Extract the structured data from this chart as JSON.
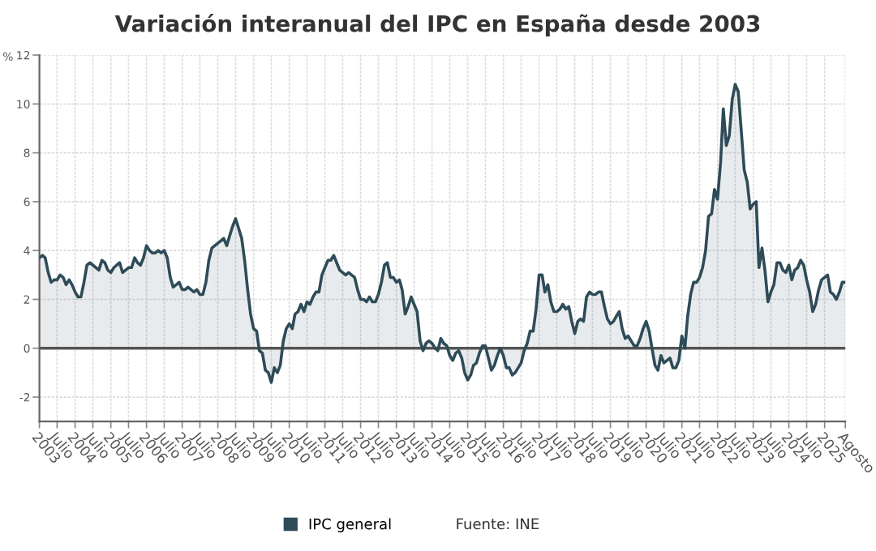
{
  "chart_data": {
    "type": "area",
    "title": "Variación interanual del IPC en España desde 2003",
    "ylabel": "%",
    "x": [
      "2003-01",
      "2003-02",
      "2003-03",
      "2003-04",
      "2003-05",
      "2003-06",
      "2003-07",
      "2003-08",
      "2003-09",
      "2003-10",
      "2003-11",
      "2003-12",
      "2004-01",
      "2004-02",
      "2004-03",
      "2004-04",
      "2004-05",
      "2004-06",
      "2004-07",
      "2004-08",
      "2004-09",
      "2004-10",
      "2004-11",
      "2004-12",
      "2005-01",
      "2005-02",
      "2005-03",
      "2005-04",
      "2005-05",
      "2005-06",
      "2005-07",
      "2005-08",
      "2005-09",
      "2005-10",
      "2005-11",
      "2005-12",
      "2006-01",
      "2006-02",
      "2006-03",
      "2006-04",
      "2006-05",
      "2006-06",
      "2006-07",
      "2006-08",
      "2006-09",
      "2006-10",
      "2006-11",
      "2006-12",
      "2007-01",
      "2007-02",
      "2007-03",
      "2007-04",
      "2007-05",
      "2007-06",
      "2007-07",
      "2007-08",
      "2007-09",
      "2007-10",
      "2007-11",
      "2007-12",
      "2008-01",
      "2008-02",
      "2008-03",
      "2008-04",
      "2008-05",
      "2008-06",
      "2008-07",
      "2008-08",
      "2008-09",
      "2008-10",
      "2008-11",
      "2008-12",
      "2009-01",
      "2009-02",
      "2009-03",
      "2009-04",
      "2009-05",
      "2009-06",
      "2009-07",
      "2009-08",
      "2009-09",
      "2009-10",
      "2009-11",
      "2009-12",
      "2010-01",
      "2010-02",
      "2010-03",
      "2010-04",
      "2010-05",
      "2010-06",
      "2010-07",
      "2010-08",
      "2010-09",
      "2010-10",
      "2010-11",
      "2010-12",
      "2011-01",
      "2011-02",
      "2011-03",
      "2011-04",
      "2011-05",
      "2011-06",
      "2011-07",
      "2011-08",
      "2011-09",
      "2011-10",
      "2011-11",
      "2011-12",
      "2012-01",
      "2012-02",
      "2012-03",
      "2012-04",
      "2012-05",
      "2012-06",
      "2012-07",
      "2012-08",
      "2012-09",
      "2012-10",
      "2012-11",
      "2012-12",
      "2013-01",
      "2013-02",
      "2013-03",
      "2013-04",
      "2013-05",
      "2013-06",
      "2013-07",
      "2013-08",
      "2013-09",
      "2013-10",
      "2013-11",
      "2013-12",
      "2014-01",
      "2014-02",
      "2014-03",
      "2014-04",
      "2014-05",
      "2014-06",
      "2014-07",
      "2014-08",
      "2014-09",
      "2014-10",
      "2014-11",
      "2014-12",
      "2015-01",
      "2015-02",
      "2015-03",
      "2015-04",
      "2015-05",
      "2015-06",
      "2015-07",
      "2015-08",
      "2015-09",
      "2015-10",
      "2015-11",
      "2015-12",
      "2016-01",
      "2016-02",
      "2016-03",
      "2016-04",
      "2016-05",
      "2016-06",
      "2016-07",
      "2016-08",
      "2016-09",
      "2016-10",
      "2016-11",
      "2016-12",
      "2017-01",
      "2017-02",
      "2017-03",
      "2017-04",
      "2017-05",
      "2017-06",
      "2017-07",
      "2017-08",
      "2017-09",
      "2017-10",
      "2017-11",
      "2017-12",
      "2018-01",
      "2018-02",
      "2018-03",
      "2018-04",
      "2018-05",
      "2018-06",
      "2018-07",
      "2018-08",
      "2018-09",
      "2018-10",
      "2018-11",
      "2018-12",
      "2019-01",
      "2019-02",
      "2019-03",
      "2019-04",
      "2019-05",
      "2019-06",
      "2019-07",
      "2019-08",
      "2019-09",
      "2019-10",
      "2019-11",
      "2019-12",
      "2020-01",
      "2020-02",
      "2020-03",
      "2020-04",
      "2020-05",
      "2020-06",
      "2020-07",
      "2020-08",
      "2020-09",
      "2020-10",
      "2020-11",
      "2020-12",
      "2021-01",
      "2021-02",
      "2021-03",
      "2021-04",
      "2021-05",
      "2021-06",
      "2021-07",
      "2021-08",
      "2021-09",
      "2021-10",
      "2021-11",
      "2021-12",
      "2022-01",
      "2022-02",
      "2022-03",
      "2022-04",
      "2022-05",
      "2022-06",
      "2022-07",
      "2022-08",
      "2022-09",
      "2022-10",
      "2022-11",
      "2022-12",
      "2023-01",
      "2023-02",
      "2023-03",
      "2023-04",
      "2023-05",
      "2023-06",
      "2023-07",
      "2023-08",
      "2023-09",
      "2023-10",
      "2023-11",
      "2023-12",
      "2024-01",
      "2024-02",
      "2024-03",
      "2024-04",
      "2024-05",
      "2024-06",
      "2024-07",
      "2024-08",
      "2024-09",
      "2024-10",
      "2024-11",
      "2024-12",
      "2025-01",
      "2025-02",
      "2025-03",
      "2025-04",
      "2025-05",
      "2025-06",
      "2025-07",
      "2025-08"
    ],
    "series": [
      {
        "name": "IPC general",
        "color": "#2e4b58",
        "values": [
          3.7,
          3.8,
          3.7,
          3.1,
          2.7,
          2.8,
          2.8,
          3.0,
          2.9,
          2.6,
          2.8,
          2.6,
          2.3,
          2.1,
          2.1,
          2.7,
          3.4,
          3.5,
          3.4,
          3.3,
          3.2,
          3.6,
          3.5,
          3.2,
          3.1,
          3.3,
          3.4,
          3.5,
          3.1,
          3.2,
          3.3,
          3.3,
          3.7,
          3.5,
          3.4,
          3.7,
          4.2,
          4.0,
          3.9,
          3.9,
          4.0,
          3.9,
          4.0,
          3.7,
          2.9,
          2.5,
          2.6,
          2.7,
          2.4,
          2.4,
          2.5,
          2.4,
          2.3,
          2.4,
          2.2,
          2.2,
          2.7,
          3.6,
          4.1,
          4.2,
          4.3,
          4.4,
          4.5,
          4.2,
          4.6,
          5.0,
          5.3,
          4.9,
          4.5,
          3.6,
          2.4,
          1.4,
          0.8,
          0.7,
          -0.1,
          -0.2,
          -0.9,
          -1.0,
          -1.4,
          -0.8,
          -1.0,
          -0.7,
          0.3,
          0.8,
          1.0,
          0.8,
          1.4,
          1.5,
          1.8,
          1.5,
          1.9,
          1.8,
          2.1,
          2.3,
          2.3,
          3.0,
          3.3,
          3.6,
          3.6,
          3.8,
          3.5,
          3.2,
          3.1,
          3.0,
          3.1,
          3.0,
          2.9,
          2.4,
          2.0,
          2.0,
          1.9,
          2.1,
          1.9,
          1.9,
          2.2,
          2.7,
          3.4,
          3.5,
          2.9,
          2.9,
          2.7,
          2.8,
          2.4,
          1.4,
          1.7,
          2.1,
          1.8,
          1.5,
          0.3,
          -0.1,
          0.2,
          0.3,
          0.2,
          0.0,
          -0.1,
          0.4,
          0.2,
          0.1,
          -0.3,
          -0.5,
          -0.2,
          -0.1,
          -0.4,
          -1.0,
          -1.3,
          -1.1,
          -0.7,
          -0.6,
          -0.2,
          0.1,
          0.1,
          -0.4,
          -0.9,
          -0.7,
          -0.3,
          0.0,
          -0.3,
          -0.8,
          -0.8,
          -1.1,
          -1.0,
          -0.8,
          -0.6,
          -0.1,
          0.2,
          0.7,
          0.7,
          1.6,
          3.0,
          3.0,
          2.3,
          2.6,
          1.9,
          1.5,
          1.5,
          1.6,
          1.8,
          1.6,
          1.7,
          1.1,
          0.6,
          1.1,
          1.2,
          1.1,
          2.1,
          2.3,
          2.2,
          2.2,
          2.3,
          2.3,
          1.7,
          1.2,
          1.0,
          1.1,
          1.3,
          1.5,
          0.8,
          0.4,
          0.5,
          0.3,
          0.1,
          0.1,
          0.4,
          0.8,
          1.1,
          0.7,
          0.0,
          -0.7,
          -0.9,
          -0.3,
          -0.6,
          -0.5,
          -0.4,
          -0.8,
          -0.8,
          -0.5,
          0.5,
          0.0,
          1.3,
          2.2,
          2.7,
          2.7,
          2.9,
          3.3,
          4.0,
          5.4,
          5.5,
          6.5,
          6.1,
          7.6,
          9.8,
          8.3,
          8.7,
          10.2,
          10.8,
          10.5,
          8.9,
          7.3,
          6.8,
          5.7,
          5.9,
          6.0,
          3.3,
          4.1,
          3.2,
          1.9,
          2.3,
          2.6,
          3.5,
          3.5,
          3.2,
          3.1,
          3.4,
          2.8,
          3.2,
          3.3,
          3.6,
          3.4,
          2.8,
          2.3,
          1.5,
          1.8,
          2.4,
          2.8,
          2.9,
          3.0,
          2.3,
          2.2,
          2.0,
          2.3,
          2.7,
          2.7
        ]
      }
    ],
    "xlim": [
      "2003-01",
      "2025-08"
    ],
    "xticks": [
      {
        "value": "2003-01",
        "label": "2003"
      },
      {
        "value": "2003-07",
        "label": "Julio"
      },
      {
        "value": "2004-01",
        "label": "2004"
      },
      {
        "value": "2004-07",
        "label": "Julio"
      },
      {
        "value": "2005-01",
        "label": "2005"
      },
      {
        "value": "2005-07",
        "label": "Julio"
      },
      {
        "value": "2006-01",
        "label": "2006"
      },
      {
        "value": "2006-07",
        "label": "Julio"
      },
      {
        "value": "2007-01",
        "label": "2007"
      },
      {
        "value": "2007-07",
        "label": "Julio"
      },
      {
        "value": "2008-01",
        "label": "2008"
      },
      {
        "value": "2008-07",
        "label": "Julio"
      },
      {
        "value": "2009-01",
        "label": "2009"
      },
      {
        "value": "2009-07",
        "label": "Julio"
      },
      {
        "value": "2010-01",
        "label": "2010"
      },
      {
        "value": "2010-07",
        "label": "Julio"
      },
      {
        "value": "2011-01",
        "label": "2011"
      },
      {
        "value": "2011-07",
        "label": "Julio"
      },
      {
        "value": "2012-01",
        "label": "2012"
      },
      {
        "value": "2012-07",
        "label": "Julio"
      },
      {
        "value": "2013-01",
        "label": "2013"
      },
      {
        "value": "2013-07",
        "label": "Julio"
      },
      {
        "value": "2014-01",
        "label": "2014"
      },
      {
        "value": "2014-07",
        "label": "Julio"
      },
      {
        "value": "2015-01",
        "label": "2015"
      },
      {
        "value": "2015-07",
        "label": "Julio"
      },
      {
        "value": "2016-01",
        "label": "2016"
      },
      {
        "value": "2016-07",
        "label": "Julio"
      },
      {
        "value": "2017-01",
        "label": "2017"
      },
      {
        "value": "2017-07",
        "label": "Julio"
      },
      {
        "value": "2018-01",
        "label": "2018"
      },
      {
        "value": "2018-07",
        "label": "Julio"
      },
      {
        "value": "2019-01",
        "label": "2019"
      },
      {
        "value": "2019-07",
        "label": "Julio"
      },
      {
        "value": "2020-01",
        "label": "2020"
      },
      {
        "value": "2020-07",
        "label": "Julio"
      },
      {
        "value": "2021-01",
        "label": "2021"
      },
      {
        "value": "2021-07",
        "label": "Julio"
      },
      {
        "value": "2022-01",
        "label": "2022"
      },
      {
        "value": "2022-07",
        "label": "Julio"
      },
      {
        "value": "2023-01",
        "label": "2023"
      },
      {
        "value": "2023-07",
        "label": "Julio"
      },
      {
        "value": "2024-01",
        "label": "2024"
      },
      {
        "value": "2024-07",
        "label": "Julio"
      },
      {
        "value": "2025-01",
        "label": "2025"
      },
      {
        "value": "2025-08",
        "label": "Agosto"
      }
    ],
    "ylim": [
      -3,
      12
    ],
    "yticks": [
      -2,
      0,
      2,
      4,
      6,
      8,
      10,
      12
    ],
    "ref_lines": [
      {
        "axis": "y",
        "value": 0,
        "color": "#555555"
      }
    ],
    "grid": true,
    "legend": "bottom",
    "marker": "none",
    "line_style": "solid",
    "annotations": [
      "Fuente: INE"
    ]
  }
}
